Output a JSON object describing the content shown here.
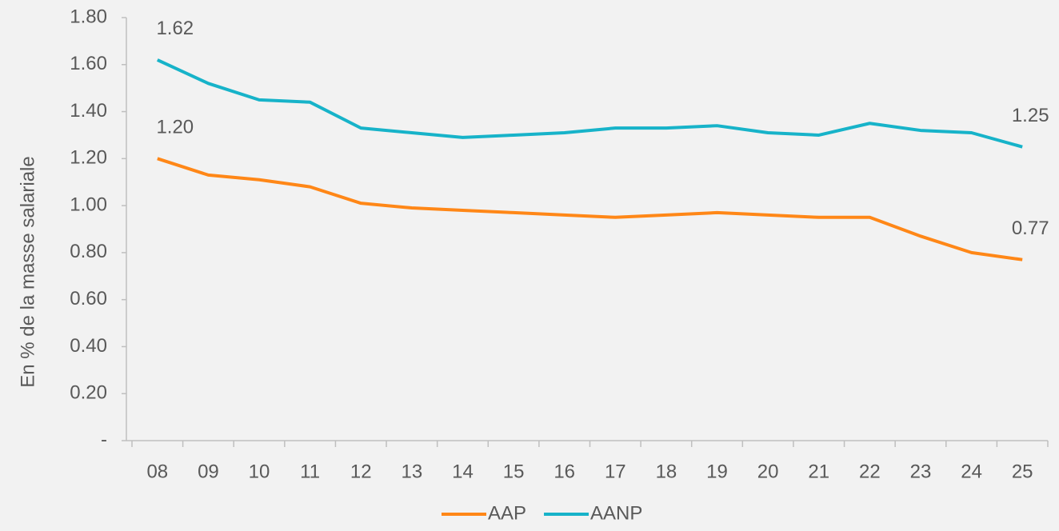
{
  "chart_data": {
    "type": "line",
    "y_label": "En % de la masse salariale",
    "categories": [
      "08",
      "09",
      "10",
      "11",
      "12",
      "13",
      "14",
      "15",
      "16",
      "17",
      "18",
      "19",
      "20",
      "21",
      "22",
      "23",
      "24",
      "25"
    ],
    "series": [
      {
        "name": "AAP",
        "color": "#ff8717",
        "values": [
          1.2,
          1.13,
          1.11,
          1.08,
          1.01,
          0.99,
          0.98,
          0.97,
          0.96,
          0.95,
          0.96,
          0.97,
          0.96,
          0.95,
          0.95,
          0.87,
          0.8,
          0.77
        ],
        "value_labels": [
          "1.20",
          null,
          null,
          null,
          null,
          null,
          null,
          null,
          null,
          null,
          null,
          null,
          null,
          null,
          null,
          null,
          null,
          "0.77"
        ]
      },
      {
        "name": "AANP",
        "color": "#17b3c9",
        "values": [
          1.62,
          1.52,
          1.45,
          1.44,
          1.33,
          1.31,
          1.29,
          1.3,
          1.31,
          1.33,
          1.33,
          1.34,
          1.31,
          1.3,
          1.35,
          1.32,
          1.31,
          1.25
        ],
        "value_labels": [
          "1.62",
          null,
          null,
          null,
          null,
          null,
          null,
          null,
          null,
          null,
          null,
          null,
          null,
          null,
          null,
          null,
          null,
          "1.25"
        ]
      }
    ],
    "ylim": [
      0,
      1.8
    ],
    "yticks": [
      {
        "value": 0,
        "label": "-"
      },
      {
        "value": 0.2,
        "label": "0.20"
      },
      {
        "value": 0.4,
        "label": "0.40"
      },
      {
        "value": 0.6,
        "label": "0.60"
      },
      {
        "value": 0.8,
        "label": "0.80"
      },
      {
        "value": 1.0,
        "label": "1.00"
      },
      {
        "value": 1.2,
        "label": "1.20"
      },
      {
        "value": 1.4,
        "label": "1.40"
      },
      {
        "value": 1.6,
        "label": "1.60"
      },
      {
        "value": 1.8,
        "label": "1.80"
      }
    ],
    "legend": "bottom"
  }
}
